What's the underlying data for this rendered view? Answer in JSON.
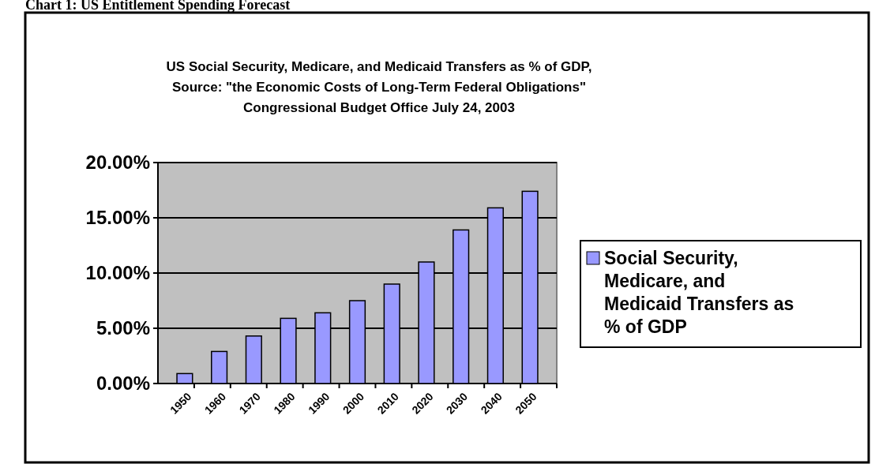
{
  "chart_data": {
    "type": "bar",
    "title": "US Social Security, Medicare, and Medicaid Transfers as % of GDP,\nSource: \"the Economic Costs of Long-Term Federal Obligations\"\nCongressional Budget Office July 24, 2003",
    "annotations": [
      "Chart 1: US Entitlement Spending Forecast"
    ],
    "categories": [
      "1950",
      "1960",
      "1970",
      "1980",
      "1990",
      "2000",
      "2010",
      "2020",
      "2030",
      "2040",
      "2050"
    ],
    "series": [
      {
        "name": "Social Security, Medicare, and Medicaid Transfers as % of GDP",
        "color": "#9999ff",
        "values": [
          0.9,
          2.9,
          4.3,
          5.9,
          6.4,
          7.5,
          9.0,
          11.0,
          13.9,
          15.9,
          17.4
        ]
      }
    ],
    "ylim": [
      0,
      20
    ],
    "yticks": [
      {
        "value": 0,
        "label": "0.00%"
      },
      {
        "value": 5,
        "label": "5.00%"
      },
      {
        "value": 10,
        "label": "10.00%"
      },
      {
        "value": 15,
        "label": "15.00%"
      },
      {
        "value": 20,
        "label": "20.00%"
      }
    ],
    "grid": "y",
    "legend": "right"
  }
}
